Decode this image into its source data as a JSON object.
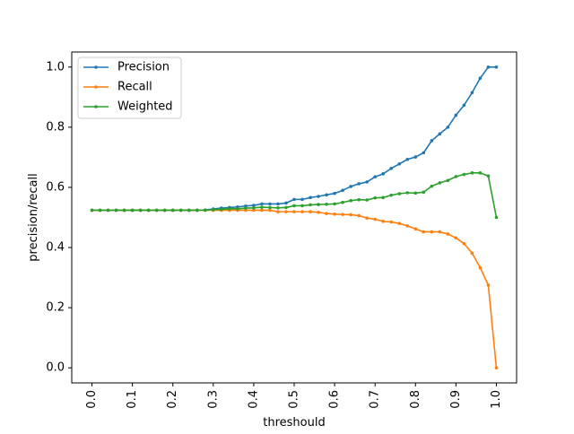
{
  "chart_data": {
    "type": "line",
    "title": "",
    "xlabel": "threshould",
    "ylabel": "precision/recall",
    "xlim": [
      -0.05,
      1.05
    ],
    "ylim": [
      -0.05,
      1.05
    ],
    "xticks": [
      0.0,
      0.1,
      0.2,
      0.3,
      0.4,
      0.5,
      0.6,
      0.7,
      0.8,
      0.9,
      1.0
    ],
    "xtick_labels": [
      "0.0",
      "0.1",
      "0.2",
      "0.3",
      "0.4",
      "0.5",
      "0.6",
      "0.7",
      "0.8",
      "0.9",
      "1.0"
    ],
    "yticks": [
      0.0,
      0.2,
      0.4,
      0.6,
      0.8,
      1.0
    ],
    "ytick_labels": [
      "0.0",
      "0.2",
      "0.4",
      "0.6",
      "0.8",
      "1.0"
    ],
    "grid": false,
    "legend_position": "top-left",
    "x": [
      0.0,
      0.02,
      0.04,
      0.06,
      0.08,
      0.1,
      0.12,
      0.14,
      0.16,
      0.18,
      0.2,
      0.22,
      0.24,
      0.26,
      0.28,
      0.3,
      0.32,
      0.34,
      0.36,
      0.38,
      0.4,
      0.42,
      0.44,
      0.46,
      0.48,
      0.5,
      0.52,
      0.54,
      0.56,
      0.58,
      0.6,
      0.62,
      0.64,
      0.66,
      0.68,
      0.7,
      0.72,
      0.74,
      0.76,
      0.78,
      0.8,
      0.82,
      0.84,
      0.86,
      0.88,
      0.9,
      0.92,
      0.94,
      0.96,
      0.98,
      1.0
    ],
    "series": [
      {
        "name": "Precision",
        "color": "#1f77b4",
        "values": [
          0.524,
          0.524,
          0.524,
          0.524,
          0.524,
          0.524,
          0.524,
          0.524,
          0.524,
          0.524,
          0.524,
          0.524,
          0.524,
          0.524,
          0.525,
          0.528,
          0.531,
          0.533,
          0.535,
          0.538,
          0.54,
          0.545,
          0.545,
          0.545,
          0.548,
          0.56,
          0.56,
          0.566,
          0.57,
          0.575,
          0.58,
          0.59,
          0.603,
          0.612,
          0.618,
          0.635,
          0.645,
          0.663,
          0.678,
          0.693,
          0.701,
          0.715,
          0.755,
          0.778,
          0.8,
          0.84,
          0.873,
          0.915,
          0.963,
          1.0,
          1.0
        ]
      },
      {
        "name": "Recall",
        "color": "#ff7f0e",
        "values": [
          0.524,
          0.524,
          0.524,
          0.524,
          0.524,
          0.524,
          0.524,
          0.524,
          0.524,
          0.524,
          0.524,
          0.524,
          0.524,
          0.524,
          0.524,
          0.524,
          0.524,
          0.524,
          0.524,
          0.524,
          0.524,
          0.524,
          0.524,
          0.519,
          0.519,
          0.519,
          0.519,
          0.519,
          0.517,
          0.513,
          0.511,
          0.51,
          0.509,
          0.506,
          0.498,
          0.494,
          0.487,
          0.485,
          0.48,
          0.472,
          0.462,
          0.452,
          0.452,
          0.452,
          0.445,
          0.432,
          0.413,
          0.381,
          0.333,
          0.275,
          0.0
        ]
      },
      {
        "name": "Weighted",
        "color": "#2ca02c",
        "values": [
          0.524,
          0.524,
          0.524,
          0.524,
          0.524,
          0.524,
          0.524,
          0.524,
          0.524,
          0.524,
          0.524,
          0.524,
          0.524,
          0.524,
          0.524,
          0.526,
          0.527,
          0.529,
          0.529,
          0.531,
          0.532,
          0.534,
          0.533,
          0.532,
          0.533,
          0.539,
          0.539,
          0.542,
          0.543,
          0.544,
          0.545,
          0.55,
          0.556,
          0.559,
          0.558,
          0.565,
          0.566,
          0.574,
          0.579,
          0.582,
          0.581,
          0.584,
          0.604,
          0.615,
          0.623,
          0.636,
          0.643,
          0.648,
          0.648,
          0.638,
          0.5
        ]
      }
    ]
  }
}
